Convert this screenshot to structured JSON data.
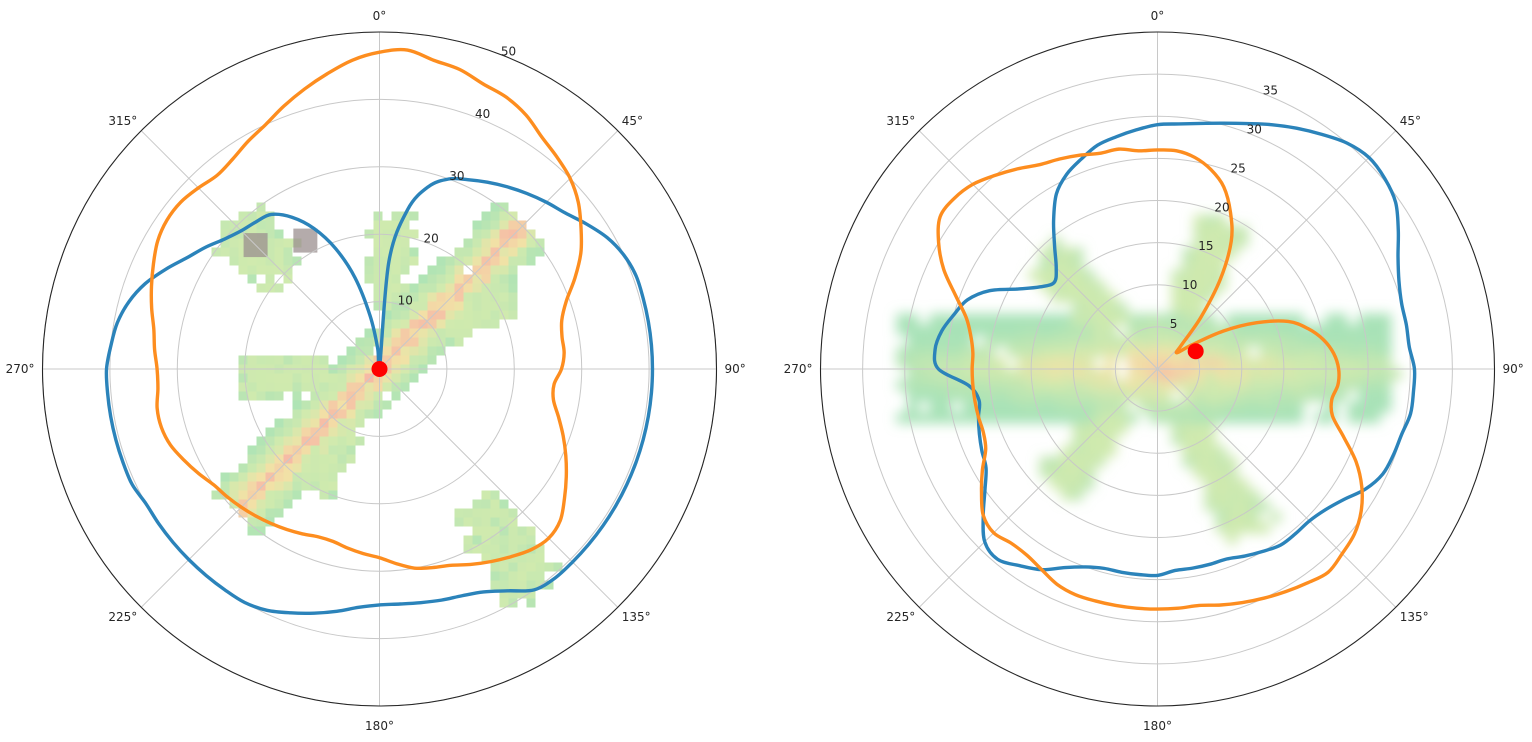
{
  "chart_data": [
    {
      "type": "polar-line",
      "theta_ticks": [
        "0°",
        "45°",
        "90°",
        "135°",
        "180°",
        "225°",
        "270°",
        "315°"
      ],
      "theta_direction": "clockwise",
      "theta_zero": "top",
      "r_ticks": [
        "10",
        "20",
        "30",
        "40",
        "50"
      ],
      "rlim": [
        0,
        50
      ],
      "r_label_angle_deg": 22.5,
      "grid": true,
      "background_heatmap": {
        "type": "heatmap",
        "colormap": "green-yellow-red",
        "regions": [
          {
            "name": "main-body",
            "theta_range_deg": [
              140,
              320
            ],
            "r_range": [
              0,
              35
            ]
          },
          {
            "name": "upper-left-blob",
            "theta_deg": 315,
            "r_range": [
              20,
              30
            ]
          },
          {
            "name": "upper-arm",
            "theta_deg": 5,
            "r_range": [
              10,
              22
            ]
          },
          {
            "name": "right-arm",
            "theta_deg": 60,
            "r_range": [
              12,
              22
            ]
          },
          {
            "name": "left-arm",
            "theta_deg": 265,
            "r_range": [
              8,
              20
            ]
          },
          {
            "name": "lower-left-arm",
            "theta_deg": 210,
            "r_range": [
              8,
              20
            ]
          },
          {
            "name": "lower-right-tail",
            "theta_deg": 145,
            "r_range": [
              25,
              40
            ]
          }
        ]
      },
      "marker": {
        "theta": 0,
        "r": 0,
        "color": "#ff0000"
      },
      "series": [
        {
          "color": "#2b83ba",
          "theta": [
            0,
            5,
            10,
            15,
            20,
            25,
            30,
            35,
            40,
            45,
            50,
            55,
            60,
            65,
            70,
            75,
            80,
            85,
            90,
            95,
            100,
            105,
            110,
            115,
            120,
            125,
            130,
            135,
            140,
            145,
            150,
            155,
            160,
            165,
            170,
            175,
            180,
            185,
            190,
            195,
            200,
            205,
            210,
            215,
            220,
            225,
            230,
            235,
            240,
            245,
            250,
            255,
            260,
            265,
            270,
            275,
            280,
            285,
            290,
            295,
            300,
            305,
            310,
            315,
            320,
            325,
            330,
            335,
            340,
            345,
            350,
            355,
            360
          ],
          "r": [
            0,
            16,
            24,
            28,
            30,
            31,
            32,
            33,
            34,
            35,
            36,
            37.5,
            39,
            40,
            40.5,
            40.5,
            40.5,
            40.5,
            40.5,
            40.5,
            40.5,
            40.5,
            40.5,
            40.5,
            40.5,
            40.5,
            40.5,
            40.5,
            40.5,
            40,
            38,
            36.5,
            35.8,
            35.5,
            35.2,
            35,
            35,
            35.5,
            36.5,
            37.5,
            38.5,
            39.5,
            40,
            40,
            40,
            40,
            40,
            40,
            40,
            40.5,
            40.5,
            40.5,
            40.5,
            40.5,
            40.5,
            40,
            39.5,
            38.5,
            37,
            35,
            33,
            31.5,
            30,
            29,
            28.5,
            28,
            26,
            23,
            19,
            14,
            8,
            3,
            0
          ]
        },
        {
          "color": "#fd8d1f",
          "theta": [
            0,
            5,
            10,
            15,
            20,
            25,
            30,
            35,
            40,
            45,
            50,
            55,
            60,
            65,
            70,
            75,
            80,
            85,
            90,
            95,
            100,
            105,
            110,
            115,
            120,
            125,
            130,
            135,
            140,
            145,
            150,
            155,
            160,
            165,
            170,
            175,
            180,
            185,
            190,
            195,
            200,
            205,
            210,
            215,
            220,
            225,
            230,
            235,
            240,
            245,
            250,
            255,
            260,
            265,
            270,
            275,
            280,
            285,
            290,
            295,
            300,
            305,
            310,
            315,
            320,
            325,
            330,
            335,
            340,
            345,
            350,
            355,
            360
          ],
          "r": [
            47,
            47.5,
            46.5,
            46,
            45,
            44.5,
            43.5,
            42,
            41,
            40,
            38.5,
            36.5,
            34.5,
            32,
            29.5,
            28,
            27.5,
            27.5,
            27,
            26,
            26.2,
            27.5,
            29,
            30.5,
            32,
            33.5,
            35,
            35.5,
            35,
            34,
            33,
            32,
            31,
            30.5,
            30,
            29,
            28,
            27.5,
            27,
            26.5,
            26.5,
            27,
            27.5,
            28,
            28.5,
            29,
            29.5,
            30,
            31,
            32,
            33,
            33.5,
            33.5,
            33,
            33,
            33.5,
            34,
            35,
            36,
            37,
            38,
            38.5,
            38.5,
            38,
            37.5,
            38,
            39,
            40,
            41.5,
            43,
            44.5,
            46,
            47
          ]
        }
      ]
    },
    {
      "type": "polar-line",
      "theta_ticks": [
        "0°",
        "45°",
        "90°",
        "135°",
        "180°",
        "225°",
        "270°",
        "315°"
      ],
      "theta_direction": "clockwise",
      "theta_zero": "top",
      "r_ticks": [
        "5",
        "10",
        "15",
        "20",
        "25",
        "30",
        "35"
      ],
      "rlim": [
        0,
        40
      ],
      "r_label_angle_deg": 22.5,
      "grid": true,
      "background_heatmap": {
        "type": "heatmap",
        "colormap": "green-yellow-red",
        "regions": [
          {
            "name": "horizontal-body",
            "theta_range_deg": [
              60,
              300
            ],
            "r_range": [
              0,
              28
            ]
          },
          {
            "name": "upper-left-arm",
            "theta_deg": 315,
            "r_range": [
              8,
              18
            ]
          },
          {
            "name": "upper-right-arm",
            "theta_deg": 25,
            "r_range": [
              8,
              18
            ]
          },
          {
            "name": "lower-left-arm",
            "theta_deg": 220,
            "r_range": [
              8,
              18
            ]
          },
          {
            "name": "lower-right-arm",
            "theta_deg": 150,
            "r_range": [
              8,
              22
            ]
          }
        ]
      },
      "marker": {
        "theta": 65,
        "r": 5,
        "color": "#ff0000"
      },
      "series": [
        {
          "color": "#2b83ba",
          "theta": [
            0,
            5,
            10,
            15,
            20,
            25,
            30,
            35,
            40,
            45,
            50,
            55,
            60,
            65,
            70,
            75,
            80,
            85,
            90,
            95,
            100,
            105,
            110,
            115,
            120,
            125,
            130,
            135,
            140,
            145,
            150,
            155,
            160,
            165,
            170,
            175,
            180,
            185,
            190,
            195,
            200,
            205,
            210,
            215,
            220,
            225,
            230,
            235,
            240,
            245,
            250,
            255,
            260,
            265,
            270,
            275,
            280,
            285,
            290,
            295,
            300,
            305,
            310,
            315,
            320,
            325,
            330,
            335,
            340,
            345,
            350,
            355,
            360
          ],
          "r": [
            29,
            29.2,
            29.6,
            30.2,
            31,
            32,
            33,
            34,
            35,
            35.5,
            35.2,
            34.5,
            33,
            31.5,
            30.5,
            30,
            30,
            30,
            30.5,
            30.5,
            30.5,
            30,
            29.8,
            29.5,
            28.5,
            27,
            26,
            25.5,
            25.5,
            25.5,
            25,
            24.5,
            24,
            24,
            24,
            24,
            24.5,
            24.5,
            24.5,
            24.5,
            25,
            26,
            27.5,
            28.5,
            29.5,
            29,
            27,
            25,
            23.5,
            23,
            22.5,
            22,
            21.5,
            22.5,
            26,
            26.5,
            26,
            25,
            24,
            22,
            19,
            17,
            16,
            17,
            19,
            21.5,
            24,
            25.5,
            26.5,
            27.5,
            28,
            28.5,
            29
          ]
        },
        {
          "color": "#fd8d1f",
          "theta": [
            0,
            5,
            10,
            15,
            20,
            25,
            30,
            35,
            40,
            45,
            50,
            55,
            60,
            65,
            70,
            75,
            80,
            85,
            90,
            95,
            100,
            105,
            110,
            115,
            120,
            125,
            130,
            135,
            140,
            145,
            150,
            155,
            160,
            165,
            170,
            175,
            180,
            185,
            190,
            195,
            200,
            205,
            210,
            215,
            220,
            225,
            230,
            235,
            240,
            245,
            250,
            255,
            260,
            265,
            270,
            275,
            280,
            285,
            290,
            295,
            300,
            305,
            310,
            315,
            320,
            325,
            330,
            335,
            340,
            345,
            350,
            355,
            360
          ],
          "r": [
            26,
            26,
            25.5,
            24.5,
            23,
            20.5,
            17.5,
            13,
            8,
            4,
            3,
            5,
            9,
            13,
            16.5,
            18.5,
            20,
            21,
            21.5,
            21.5,
            21,
            21.5,
            23.5,
            26,
            28,
            29.5,
            30.5,
            31,
            31.5,
            31,
            30.5,
            30,
            29.5,
            29,
            28.5,
            28.5,
            28.5,
            28.5,
            28.5,
            28.5,
            28.5,
            28.2,
            27.5,
            27,
            27,
            27.5,
            27,
            25.5,
            24,
            22.5,
            22,
            22,
            22,
            22,
            22,
            22,
            22.5,
            23.5,
            25.5,
            28,
            30,
            31.5,
            31.5,
            31,
            30,
            29,
            28,
            27.5,
            27,
            26.5,
            26.5,
            26,
            26
          ]
        }
      ]
    }
  ]
}
